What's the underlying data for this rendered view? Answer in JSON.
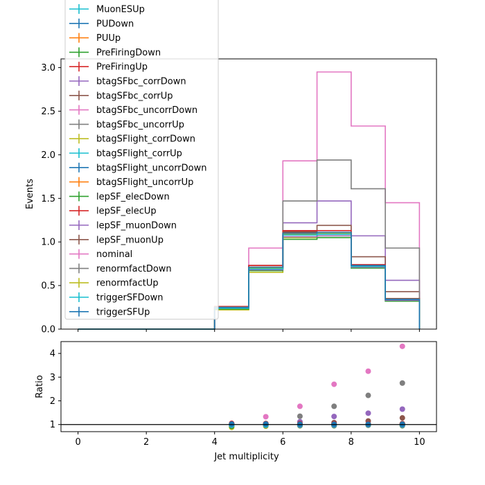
{
  "chart_data": {
    "type": "line",
    "xlabel": "Jet multiplicity",
    "ylabel": "Events",
    "ratio_ylabel": "Ratio",
    "xlim": [
      -0.5,
      10.5
    ],
    "ylim": [
      0,
      3.1
    ],
    "ratio_ylim": [
      0.7,
      4.5
    ],
    "x_ticks": [
      0,
      2,
      4,
      6,
      8,
      10
    ],
    "y_ticks": [
      0.0,
      0.5,
      1.0,
      1.5,
      2.0,
      2.5,
      3.0
    ],
    "ratio_y_ticks": [
      1,
      2,
      3,
      4
    ],
    "ratio_reference": 1,
    "bin_edges": [
      0,
      1,
      2,
      3,
      4,
      5,
      6,
      7,
      8,
      9,
      10
    ],
    "legend_placement": "upper-left",
    "colors": {
      "blue": "#1f77b4",
      "orange": "#ff7f0e",
      "green": "#2ca02c",
      "red": "#d62728",
      "purple": "#9467bd",
      "brown": "#8c564b",
      "pink": "#e377c2",
      "gray": "#7f7f7f",
      "olive": "#bcbd22",
      "cyan": "#17becf"
    },
    "series": [
      {
        "name": "MuonESUp",
        "color": "#17becf",
        "values": [
          0,
          0,
          0,
          0,
          0.25,
          0.7,
          1.09,
          1.1,
          0.72,
          0.34
        ],
        "ratio": [
          null,
          null,
          null,
          null,
          1.0,
          1.0,
          1.0,
          1.0,
          1.0,
          1.0
        ]
      },
      {
        "name": "PUDown",
        "color": "#1f77b4",
        "values": [
          0,
          0,
          0,
          0,
          0.24,
          0.7,
          1.08,
          1.09,
          0.72,
          0.34
        ],
        "ratio": [
          null,
          null,
          null,
          null,
          0.97,
          1.0,
          0.99,
          0.99,
          1.0,
          1.0
        ]
      },
      {
        "name": "PUUp",
        "color": "#ff7f0e",
        "values": [
          0,
          0,
          0,
          0,
          0.25,
          0.71,
          1.1,
          1.1,
          0.73,
          0.34
        ],
        "ratio": [
          null,
          null,
          null,
          null,
          1.02,
          1.01,
          1.01,
          1.0,
          1.01,
          1.0
        ]
      },
      {
        "name": "PreFiringDown",
        "color": "#2ca02c",
        "values": [
          0,
          0,
          0,
          0,
          0.24,
          0.69,
          1.08,
          1.09,
          0.72,
          0.33
        ],
        "ratio": [
          null,
          null,
          null,
          null,
          0.98,
          0.99,
          0.99,
          0.99,
          1.0,
          0.98
        ]
      },
      {
        "name": "PreFiringUp",
        "color": "#d62728",
        "values": [
          0,
          0,
          0,
          0,
          0.25,
          0.7,
          1.1,
          1.1,
          0.72,
          0.34
        ],
        "ratio": [
          null,
          null,
          null,
          null,
          1.01,
          1.0,
          1.01,
          1.0,
          1.0,
          1.0
        ]
      },
      {
        "name": "btagSFbc_corrDown",
        "color": "#9467bd",
        "values": [
          0,
          0,
          0,
          0,
          0.25,
          0.73,
          1.22,
          1.47,
          1.07,
          0.56
        ],
        "ratio": [
          null,
          null,
          null,
          null,
          1.0,
          1.04,
          1.12,
          1.34,
          1.48,
          1.65
        ]
      },
      {
        "name": "btagSFbc_corrUp",
        "color": "#8c564b",
        "values": [
          0,
          0,
          0,
          0,
          0.25,
          0.73,
          1.12,
          1.19,
          0.83,
          0.43
        ],
        "ratio": [
          null,
          null,
          null,
          null,
          1.0,
          1.04,
          1.03,
          1.08,
          1.15,
          1.28
        ]
      },
      {
        "name": "btagSFbc_uncorrDown",
        "color": "#e377c2",
        "values": [
          0,
          0,
          0,
          0,
          0.25,
          0.93,
          1.93,
          2.95,
          2.33,
          1.45
        ],
        "ratio": [
          null,
          null,
          null,
          null,
          1.0,
          1.33,
          1.77,
          2.7,
          3.25,
          4.3
        ]
      },
      {
        "name": "btagSFbc_uncorrUp",
        "color": "#7f7f7f",
        "values": [
          0,
          0,
          0,
          0,
          0.25,
          0.73,
          1.47,
          1.94,
          1.61,
          0.93
        ],
        "ratio": [
          null,
          null,
          null,
          null,
          1.0,
          1.04,
          1.35,
          1.77,
          2.23,
          2.75
        ]
      },
      {
        "name": "btagSFlight_corrDown",
        "color": "#bcbd22",
        "values": [
          0,
          0,
          0,
          0,
          0.22,
          0.65,
          1.05,
          1.07,
          0.71,
          0.33
        ],
        "ratio": [
          null,
          null,
          null,
          null,
          0.88,
          0.93,
          0.96,
          0.97,
          0.99,
          0.98
        ]
      },
      {
        "name": "btagSFlight_corrUp",
        "color": "#17becf",
        "values": [
          0,
          0,
          0,
          0,
          0.25,
          0.7,
          1.1,
          1.1,
          0.72,
          0.34
        ],
        "ratio": [
          null,
          null,
          null,
          null,
          1.0,
          1.0,
          1.01,
          1.0,
          1.0,
          1.0
        ]
      },
      {
        "name": "btagSFlight_uncorrDown",
        "color": "#1f77b4",
        "values": [
          0,
          0,
          0,
          0,
          0.24,
          0.69,
          1.08,
          1.09,
          0.72,
          0.34
        ],
        "ratio": [
          null,
          null,
          null,
          null,
          0.96,
          0.99,
          0.99,
          0.99,
          1.0,
          1.0
        ]
      },
      {
        "name": "btagSFlight_uncorrUp",
        "color": "#ff7f0e",
        "values": [
          0,
          0,
          0,
          0,
          0.25,
          0.71,
          1.11,
          1.11,
          0.73,
          0.35
        ],
        "ratio": [
          null,
          null,
          null,
          null,
          1.03,
          1.01,
          1.02,
          1.01,
          1.01,
          1.03
        ]
      },
      {
        "name": "lepSF_elecDown",
        "color": "#2ca02c",
        "values": [
          0,
          0,
          0,
          0,
          0.23,
          0.67,
          1.03,
          1.05,
          0.7,
          0.32
        ],
        "ratio": [
          null,
          null,
          null,
          null,
          0.93,
          0.96,
          0.95,
          0.95,
          0.97,
          0.95
        ]
      },
      {
        "name": "lepSF_elecUp",
        "color": "#d62728",
        "values": [
          0,
          0,
          0,
          0,
          0.26,
          0.73,
          1.13,
          1.13,
          0.74,
          0.35
        ],
        "ratio": [
          null,
          null,
          null,
          null,
          1.05,
          1.04,
          1.04,
          1.03,
          1.03,
          1.04
        ]
      },
      {
        "name": "lepSF_muonDown",
        "color": "#9467bd",
        "values": [
          0,
          0,
          0,
          0,
          0.24,
          0.68,
          1.06,
          1.07,
          0.71,
          0.33
        ],
        "ratio": [
          null,
          null,
          null,
          null,
          0.97,
          0.97,
          0.97,
          0.97,
          0.98,
          0.97
        ]
      },
      {
        "name": "lepSF_muonUp",
        "color": "#8c564b",
        "values": [
          0,
          0,
          0,
          0,
          0.25,
          0.71,
          1.11,
          1.11,
          0.73,
          0.35
        ],
        "ratio": [
          null,
          null,
          null,
          null,
          1.02,
          1.02,
          1.02,
          1.01,
          1.01,
          1.03
        ]
      },
      {
        "name": "nominal",
        "color": "#e377c2",
        "values": [
          0,
          0,
          0,
          0,
          0.25,
          0.7,
          1.09,
          1.1,
          0.72,
          0.34
        ],
        "ratio": [
          null,
          null,
          null,
          null,
          1.0,
          1.0,
          1.0,
          1.0,
          1.0,
          1.0
        ]
      },
      {
        "name": "renormfactDown",
        "color": "#7f7f7f",
        "values": [
          0,
          0,
          0,
          0,
          0.25,
          0.7,
          1.09,
          1.1,
          0.72,
          0.34
        ],
        "ratio": [
          null,
          null,
          null,
          null,
          1.0,
          1.0,
          1.0,
          1.0,
          1.0,
          1.0
        ]
      },
      {
        "name": "renormfactUp",
        "color": "#bcbd22",
        "values": [
          0,
          0,
          0,
          0,
          0.25,
          0.7,
          1.09,
          1.1,
          0.72,
          0.34
        ],
        "ratio": [
          null,
          null,
          null,
          null,
          1.0,
          1.0,
          1.0,
          1.0,
          1.0,
          1.0
        ]
      },
      {
        "name": "triggerSFDown",
        "color": "#17becf",
        "values": [
          0,
          0,
          0,
          0,
          0.24,
          0.69,
          1.08,
          1.09,
          0.72,
          0.34
        ],
        "ratio": [
          null,
          null,
          null,
          null,
          0.98,
          0.98,
          0.99,
          0.99,
          1.0,
          0.99
        ]
      },
      {
        "name": "triggerSFUp",
        "color": "#1f77b4",
        "values": [
          0,
          0,
          0,
          0,
          0.25,
          0.71,
          1.1,
          1.11,
          0.73,
          0.34
        ],
        "ratio": [
          null,
          null,
          null,
          null,
          1.02,
          1.02,
          1.01,
          1.01,
          1.01,
          1.01
        ]
      }
    ]
  }
}
